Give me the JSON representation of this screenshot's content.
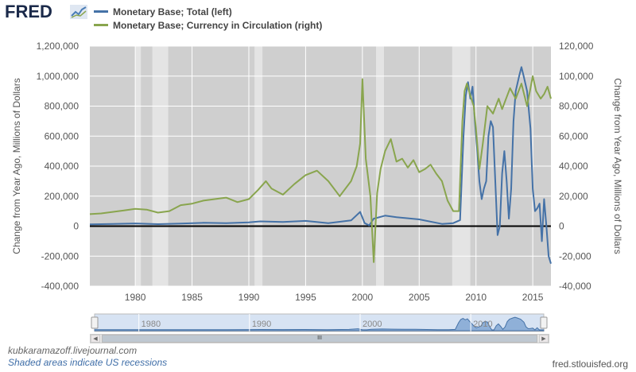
{
  "brand": {
    "logo_text": "FRED"
  },
  "legend": [
    {
      "label": "Monetary Base; Total (left)",
      "color": "#4572a7"
    },
    {
      "label": "Monetary Base; Currency in Circulation (right)",
      "color": "#89a54e"
    }
  ],
  "footer": {
    "credit": "kubkaramazoff.livejournal.com",
    "recession_note": "Shaded areas indicate US recessions",
    "source": "fred.stlouisfed.org"
  },
  "navigator": {
    "ticks": [
      "1980",
      "1990",
      "2000",
      "2010"
    ],
    "thumb_label": "III"
  },
  "chart_data": {
    "type": "line",
    "ylabel": "Change from Year Ago, Millions of Dollars",
    "ylabel_right": "Change from Year Ago, Millions of Dollars",
    "x_range": [
      1976,
      2016.6
    ],
    "x_ticks": [
      "1980",
      "1985",
      "1990",
      "1995",
      "2000",
      "2005",
      "2010",
      "2015"
    ],
    "y_left_range": [
      -400000,
      1200000
    ],
    "y_left_ticks": [
      "-400,000",
      "-200,000",
      "0",
      "200,000",
      "400,000",
      "600,000",
      "800,000",
      "1,000,000",
      "1,200,000"
    ],
    "y_right_range": [
      -40000,
      120000
    ],
    "y_right_ticks": [
      "-40,000",
      "-20,000",
      "0",
      "20,000",
      "40,000",
      "60,000",
      "80,000",
      "100,000",
      "120,000"
    ],
    "grid": true,
    "recessions": [
      [
        1980.0,
        1980.5
      ],
      [
        1981.5,
        1982.9
      ],
      [
        1990.5,
        1991.2
      ],
      [
        2001.2,
        2001.9
      ],
      [
        2007.9,
        2009.5
      ]
    ],
    "series": [
      {
        "name": "Monetary Base; Total (left)",
        "axis": "left",
        "color": "#4572a7",
        "x": [
          1976,
          1978,
          1980,
          1982,
          1984,
          1986,
          1988,
          1990,
          1991,
          1993,
          1995,
          1997,
          1999,
          1999.8,
          2000.2,
          2000.6,
          2001,
          2002,
          2003,
          2005,
          2007,
          2008,
          2008.6,
          2008.9,
          2009.1,
          2009.3,
          2009.5,
          2009.7,
          2009.9,
          2010.1,
          2010.3,
          2010.5,
          2010.7,
          2010.9,
          2011.1,
          2011.3,
          2011.5,
          2011.7,
          2011.9,
          2012.1,
          2012.3,
          2012.5,
          2012.7,
          2012.9,
          2013.1,
          2013.3,
          2013.5,
          2013.8,
          2014.0,
          2014.2,
          2014.5,
          2014.8,
          2015.0,
          2015.2,
          2015.4,
          2015.6,
          2015.8,
          2016.0,
          2016.2,
          2016.4,
          2016.6
        ],
        "values": [
          12000,
          15000,
          18000,
          13000,
          17000,
          22000,
          20000,
          25000,
          32000,
          28000,
          35000,
          20000,
          38000,
          95000,
          20000,
          5000,
          50000,
          70000,
          60000,
          45000,
          15000,
          20000,
          40000,
          600000,
          870000,
          960000,
          850000,
          930000,
          700000,
          520000,
          300000,
          180000,
          250000,
          300000,
          600000,
          700000,
          660000,
          300000,
          -60000,
          0,
          350000,
          500000,
          300000,
          50000,
          250000,
          700000,
          900000,
          1000000,
          1060000,
          1000000,
          900000,
          650000,
          250000,
          100000,
          120000,
          150000,
          -100000,
          180000,
          0,
          -200000,
          -250000
        ]
      },
      {
        "name": "Monetary Base; Currency in Circulation (right)",
        "axis": "right",
        "color": "#89a54e",
        "x": [
          1976,
          1977,
          1978,
          1979,
          1980,
          1981,
          1982,
          1983,
          1984,
          1985,
          1986,
          1987,
          1988,
          1989,
          1990,
          1990.8,
          1991.5,
          1992,
          1993,
          1994,
          1995,
          1996,
          1997,
          1998,
          1999,
          1999.5,
          1999.8,
          2000,
          2000.3,
          2000.7,
          2001,
          2001.3,
          2001.6,
          2002,
          2002.5,
          2003,
          2003.5,
          2004,
          2004.5,
          2005,
          2005.5,
          2006,
          2006.5,
          2007,
          2007.5,
          2008,
          2008.5,
          2008.8,
          2009,
          2009.2,
          2009.5,
          2009.8,
          2010,
          2010.3,
          2010.6,
          2011,
          2011.5,
          2012,
          2012.3,
          2012.7,
          2013,
          2013.5,
          2014,
          2014.5,
          2015,
          2015.3,
          2015.7,
          2016,
          2016.3,
          2016.6
        ],
        "values": [
          8000,
          8500,
          9500,
          10500,
          11500,
          11000,
          9000,
          10000,
          14000,
          15000,
          17000,
          18000,
          19000,
          16000,
          18000,
          24000,
          30000,
          25000,
          21000,
          28000,
          34000,
          37000,
          30000,
          20000,
          30000,
          40000,
          55000,
          98000,
          45000,
          20000,
          -24000,
          22000,
          38000,
          50000,
          58000,
          43000,
          45000,
          39000,
          44000,
          36000,
          38000,
          41000,
          35000,
          30000,
          17000,
          10000,
          10000,
          70000,
          90000,
          95000,
          87000,
          80000,
          65000,
          38000,
          55000,
          80000,
          75000,
          85000,
          78000,
          86000,
          92000,
          85000,
          95000,
          80000,
          100000,
          90000,
          85000,
          88000,
          93000,
          85000
        ]
      }
    ]
  }
}
